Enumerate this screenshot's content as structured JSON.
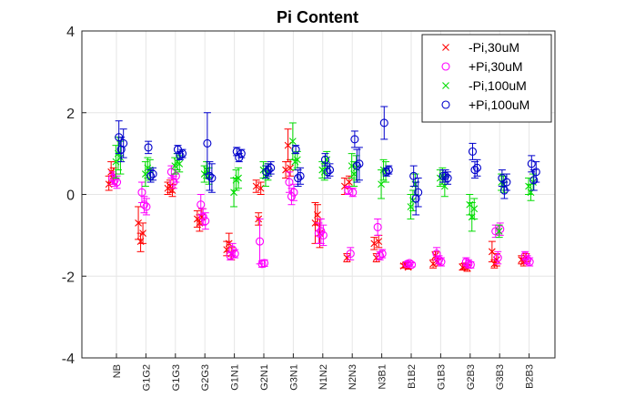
{
  "chart_data": {
    "type": "scatter",
    "title": "Pi Content",
    "xlabel": "",
    "ylabel": "",
    "ylim": [
      -4,
      4
    ],
    "yticks": [
      -4,
      -2,
      0,
      2,
      4
    ],
    "grid": true,
    "legend_position": "top-right",
    "categories": [
      "NB",
      "G1G2",
      "G1G3",
      "G2G3",
      "G1N1",
      "G2N1",
      "G3N1",
      "N1N2",
      "N2N3",
      "N3B1",
      "B1B2",
      "G1B3",
      "G2B3",
      "G3B3",
      "B2B3"
    ],
    "series": [
      {
        "name": "-Pi,30uM",
        "marker": "x",
        "color": "#ff0000",
        "offset": -0.18,
        "points": [
          [
            [
              0.25,
              0.45,
              0.1
            ],
            [
              0.55,
              0.8,
              0.3
            ],
            [
              0.45,
              0.65,
              0.25
            ]
          ],
          [
            [
              -0.7,
              -0.3,
              -1.1
            ],
            [
              -1.15,
              -0.95,
              -1.4
            ],
            [
              -0.95,
              -0.7,
              -1.2
            ]
          ],
          [
            [
              0.15,
              0.3,
              0.0
            ],
            [
              0.2,
              0.35,
              0.05
            ],
            [
              0.1,
              0.25,
              -0.05
            ]
          ],
          [
            [
              -0.6,
              -0.4,
              -0.8
            ],
            [
              -0.7,
              -0.5,
              -0.9
            ],
            [
              -0.55,
              -0.35,
              -0.75
            ]
          ],
          [
            [
              -1.35,
              -1.15,
              -1.5
            ],
            [
              -1.2,
              -0.95,
              -1.4
            ],
            [
              -1.45,
              -1.3,
              -1.6
            ]
          ],
          [
            [
              0.2,
              0.35,
              0.05
            ],
            [
              -0.6,
              -0.45,
              -0.75
            ],
            [
              0.15,
              0.3,
              0.0
            ]
          ],
          [
            [
              0.6,
              0.8,
              0.4
            ],
            [
              1.2,
              1.6,
              0.8
            ],
            [
              0.65,
              0.85,
              0.45
            ]
          ],
          [
            [
              -0.7,
              -0.2,
              -1.2
            ],
            [
              -0.5,
              -0.25,
              -0.75
            ],
            [
              -0.95,
              -0.6,
              -1.3
            ]
          ],
          [
            [
              0.2,
              0.4,
              0.0
            ],
            [
              -1.55,
              -1.45,
              -1.65
            ],
            [
              0.3,
              0.45,
              0.15
            ]
          ],
          [
            [
              -1.2,
              -1.05,
              -1.35
            ],
            [
              -1.55,
              -1.45,
              -1.65
            ],
            [
              -1.15,
              -1.0,
              -1.3
            ]
          ],
          [
            [
              -1.75,
              -1.7,
              -1.8
            ],
            [
              -1.72,
              -1.67,
              -1.77
            ],
            [
              -1.78,
              -1.73,
              -1.83
            ]
          ],
          [
            [
              -1.7,
              -1.6,
              -1.8
            ],
            [
              -1.5,
              -1.4,
              -1.6
            ],
            [
              -1.65,
              -1.55,
              -1.75
            ]
          ],
          [
            [
              -1.78,
              -1.7,
              -1.85
            ],
            [
              -1.75,
              -1.68,
              -1.82
            ],
            [
              -1.8,
              -1.72,
              -1.88
            ]
          ],
          [
            [
              -1.4,
              -1.15,
              -1.65
            ],
            [
              -1.7,
              -1.6,
              -1.8
            ],
            [
              -1.6,
              -1.45,
              -1.75
            ]
          ],
          [
            [
              -1.6,
              -1.5,
              -1.7
            ],
            [
              -1.65,
              -1.55,
              -1.75
            ],
            [
              -1.55,
              -1.45,
              -1.65
            ]
          ]
        ]
      },
      {
        "name": "+Pi,30uM",
        "marker": "o",
        "color": "#ff00ff",
        "offset": -0.06,
        "points": [
          [
            [
              0.4,
              0.55,
              0.25
            ],
            [
              0.35,
              0.5,
              0.2
            ],
            [
              0.3,
              0.45,
              0.15
            ]
          ],
          [
            [
              0.05,
              0.3,
              -0.2
            ],
            [
              -0.25,
              -0.05,
              -0.45
            ],
            [
              -0.3,
              -0.1,
              -0.5
            ]
          ],
          [
            [
              0.55,
              0.7,
              0.4
            ],
            [
              0.3,
              0.45,
              0.15
            ],
            [
              0.45,
              0.6,
              0.3
            ]
          ],
          [
            [
              -0.25,
              0.0,
              -0.5
            ],
            [
              -0.55,
              -0.35,
              -0.75
            ],
            [
              -0.65,
              -0.45,
              -0.85
            ]
          ],
          [
            [
              -1.5,
              -1.4,
              -1.6
            ],
            [
              -1.35,
              -1.2,
              -1.5
            ],
            [
              -1.45,
              -1.35,
              -1.55
            ]
          ],
          [
            [
              -1.15,
              -0.6,
              -1.7
            ],
            [
              -1.7,
              -1.62,
              -1.78
            ],
            [
              -1.68,
              -1.6,
              -1.76
            ]
          ],
          [
            [
              0.3,
              0.55,
              0.05
            ],
            [
              -0.05,
              0.15,
              -0.25
            ],
            [
              0.05,
              0.25,
              -0.15
            ]
          ],
          [
            [
              -0.95,
              -0.7,
              -1.2
            ],
            [
              -0.9,
              -0.6,
              -1.2
            ],
            [
              -1.0,
              -0.75,
              -1.25
            ]
          ],
          [
            [
              0.1,
              0.2,
              0.0
            ],
            [
              -1.45,
              -1.3,
              -1.6
            ],
            [
              0.05,
              0.15,
              -0.05
            ]
          ],
          [
            [
              -0.8,
              -0.6,
              -1.0
            ],
            [
              -1.5,
              -1.4,
              -1.6
            ],
            [
              -1.45,
              -1.35,
              -1.55
            ]
          ],
          [
            [
              -1.7,
              -1.65,
              -1.75
            ],
            [
              -1.68,
              -1.63,
              -1.73
            ],
            [
              -1.72,
              -1.67,
              -1.77
            ]
          ],
          [
            [
              -1.45,
              -1.3,
              -1.6
            ],
            [
              -1.6,
              -1.5,
              -1.7
            ],
            [
              -1.65,
              -1.55,
              -1.75
            ]
          ],
          [
            [
              -1.65,
              -1.55,
              -1.75
            ],
            [
              -1.7,
              -1.6,
              -1.8
            ],
            [
              -1.72,
              -1.65,
              -1.8
            ]
          ],
          [
            [
              -0.9,
              -0.75,
              -1.05
            ],
            [
              -1.55,
              -1.4,
              -1.7
            ],
            [
              -0.85,
              -0.7,
              -1.0
            ]
          ],
          [
            [
              -1.5,
              -1.4,
              -1.6
            ],
            [
              -1.6,
              -1.5,
              -1.7
            ],
            [
              -1.65,
              -1.55,
              -1.75
            ]
          ]
        ]
      },
      {
        "name": "-Pi,100uM",
        "marker": "x",
        "color": "#00dd00",
        "offset": 0.06,
        "points": [
          [
            [
              0.8,
              1.2,
              0.4
            ],
            [
              1.0,
              1.4,
              0.6
            ],
            [
              0.9,
              1.3,
              0.5
            ]
          ],
          [
            [
              0.5,
              0.8,
              0.2
            ],
            [
              0.65,
              0.9,
              0.4
            ],
            [
              0.6,
              0.85,
              0.35
            ]
          ],
          [
            [
              0.7,
              0.9,
              0.5
            ],
            [
              0.8,
              1.0,
              0.6
            ],
            [
              0.75,
              0.95,
              0.55
            ]
          ],
          [
            [
              0.5,
              0.7,
              0.3
            ],
            [
              0.6,
              0.8,
              0.4
            ],
            [
              0.45,
              0.65,
              0.25
            ]
          ],
          [
            [
              0.05,
              0.4,
              -0.3
            ],
            [
              0.35,
              0.6,
              0.1
            ],
            [
              0.4,
              0.65,
              0.15
            ]
          ],
          [
            [
              0.6,
              0.8,
              0.4
            ],
            [
              0.45,
              0.7,
              0.2
            ],
            [
              0.55,
              0.75,
              0.35
            ]
          ],
          [
            [
              1.3,
              1.75,
              0.85
            ],
            [
              0.8,
              1.0,
              0.6
            ],
            [
              0.85,
              1.05,
              0.65
            ]
          ],
          [
            [
              0.6,
              0.8,
              0.4
            ],
            [
              0.55,
              0.75,
              0.35
            ],
            [
              0.85,
              1.05,
              0.65
            ]
          ],
          [
            [
              0.7,
              1.0,
              0.4
            ],
            [
              0.5,
              0.8,
              0.2
            ],
            [
              0.65,
              0.95,
              0.35
            ]
          ],
          [
            [
              0.25,
              0.6,
              -0.1
            ],
            [
              0.6,
              0.85,
              0.35
            ],
            [
              0.55,
              0.8,
              0.3
            ]
          ],
          [
            [
              -0.3,
              0.0,
              -0.6
            ],
            [
              -0.15,
              0.1,
              -0.4
            ],
            [
              0.25,
              0.5,
              0.0
            ]
          ],
          [
            [
              0.4,
              0.6,
              0.2
            ],
            [
              0.45,
              0.65,
              0.25
            ],
            [
              0.2,
              0.45,
              -0.05
            ]
          ],
          [
            [
              -0.25,
              0.0,
              -0.5
            ],
            [
              -0.55,
              -0.2,
              -0.9
            ],
            [
              -0.35,
              -0.1,
              -0.6
            ]
          ],
          [
            [
              -0.9,
              -0.75,
              -1.05
            ],
            [
              0.3,
              0.5,
              0.1
            ],
            [
              0.25,
              0.45,
              0.05
            ]
          ],
          [
            [
              0.2,
              0.4,
              0.0
            ],
            [
              0.05,
              0.25,
              -0.15
            ],
            [
              0.3,
              0.5,
              0.1
            ]
          ]
        ]
      },
      {
        "name": "+Pi,100uM",
        "marker": "o",
        "color": "#0000cc",
        "offset": 0.16,
        "points": [
          [
            [
              1.4,
              1.8,
              1.0
            ],
            [
              1.1,
              1.4,
              0.8
            ],
            [
              1.25,
              1.6,
              0.9
            ]
          ],
          [
            [
              1.15,
              1.3,
              1.0
            ],
            [
              0.45,
              0.6,
              0.3
            ],
            [
              0.5,
              0.65,
              0.35
            ]
          ],
          [
            [
              1.1,
              1.2,
              1.0
            ],
            [
              0.95,
              1.05,
              0.85
            ],
            [
              1.0,
              1.1,
              0.9
            ]
          ],
          [
            [
              1.25,
              2.0,
              0.5
            ],
            [
              0.45,
              0.8,
              0.1
            ],
            [
              0.4,
              0.75,
              0.05
            ]
          ],
          [
            [
              1.05,
              1.15,
              0.95
            ],
            [
              0.9,
              1.0,
              0.8
            ],
            [
              1.0,
              1.1,
              0.9
            ]
          ],
          [
            [
              0.55,
              0.7,
              0.4
            ],
            [
              0.6,
              0.75,
              0.45
            ],
            [
              0.65,
              0.8,
              0.5
            ]
          ],
          [
            [
              1.1,
              1.2,
              1.0
            ],
            [
              0.4,
              0.6,
              0.2
            ],
            [
              0.45,
              0.65,
              0.25
            ]
          ],
          [
            [
              0.85,
              1.0,
              0.7
            ],
            [
              0.55,
              0.7,
              0.4
            ],
            [
              0.6,
              0.75,
              0.45
            ]
          ],
          [
            [
              1.35,
              1.55,
              1.15
            ],
            [
              0.7,
              1.1,
              0.3
            ],
            [
              0.75,
              1.15,
              0.35
            ]
          ],
          [
            [
              1.75,
              2.15,
              1.35
            ],
            [
              0.55,
              0.65,
              0.45
            ],
            [
              0.6,
              0.7,
              0.5
            ]
          ],
          [
            [
              0.45,
              0.7,
              0.2
            ],
            [
              -0.1,
              0.3,
              -0.5
            ],
            [
              0.05,
              0.4,
              -0.3
            ]
          ],
          [
            [
              0.45,
              0.6,
              0.3
            ],
            [
              0.45,
              0.6,
              0.3
            ],
            [
              0.4,
              0.55,
              0.25
            ]
          ],
          [
            [
              1.05,
              1.25,
              0.85
            ],
            [
              0.6,
              0.8,
              0.4
            ],
            [
              0.65,
              0.85,
              0.45
            ]
          ],
          [
            [
              0.4,
              0.6,
              0.2
            ],
            [
              0.1,
              0.3,
              -0.1
            ],
            [
              0.3,
              0.5,
              0.1
            ]
          ],
          [
            [
              0.75,
              0.95,
              0.55
            ],
            [
              0.35,
              0.6,
              0.1
            ],
            [
              0.55,
              0.8,
              0.3
            ]
          ]
        ]
      }
    ]
  }
}
